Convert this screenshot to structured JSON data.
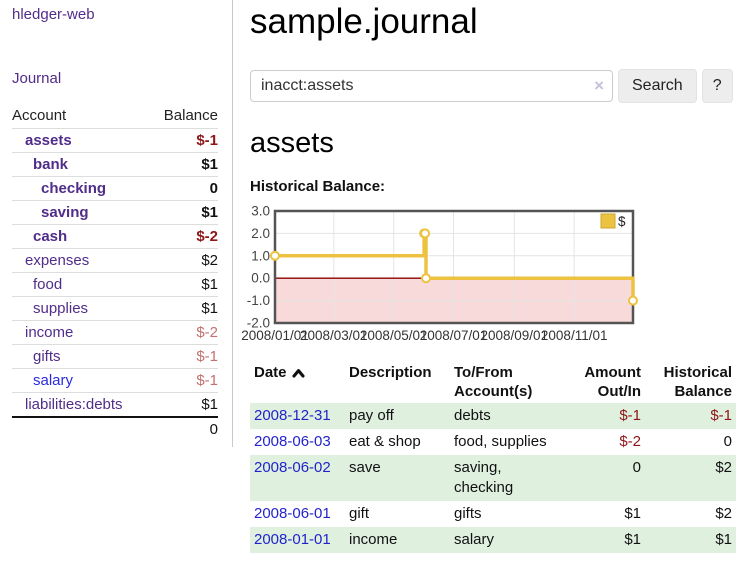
{
  "sidebar": {
    "brand": "hledger-web",
    "nav": [
      {
        "label": "Journal"
      }
    ],
    "accounts_table": {
      "headers": [
        "Account",
        "Balance"
      ],
      "rows": [
        {
          "account": "assets",
          "depth": 1,
          "bold": true,
          "balance": "$-1",
          "balance_class": "neg-strong"
        },
        {
          "account": "bank",
          "depth": 2,
          "bold": true,
          "balance": "$1",
          "balance_class": ""
        },
        {
          "account": "checking",
          "depth": 3,
          "bold": true,
          "balance": "0",
          "balance_class": ""
        },
        {
          "account": "saving",
          "depth": 3,
          "bold": true,
          "balance": "$1",
          "balance_class": ""
        },
        {
          "account": "cash",
          "depth": 2,
          "bold": true,
          "balance": "$-2",
          "balance_class": "neg-strong"
        },
        {
          "account": "expenses",
          "depth": 1,
          "bold": false,
          "balance": "$2",
          "balance_class": ""
        },
        {
          "account": "food",
          "depth": 2,
          "bold": false,
          "balance": "$1",
          "balance_class": ""
        },
        {
          "account": "supplies",
          "depth": 2,
          "bold": false,
          "balance": "$1",
          "balance_class": ""
        },
        {
          "account": "income",
          "depth": 1,
          "bold": false,
          "balance": "$-2",
          "balance_class": "neg-soft"
        },
        {
          "account": "gifts",
          "depth": 2,
          "bold": false,
          "balance": "$-1",
          "balance_class": "neg-soft"
        },
        {
          "account": "salary",
          "depth": 2,
          "bold": false,
          "balance": "$-1",
          "balance_class": "neg-soft",
          "link_style": "blue"
        },
        {
          "account": "liabilities:debts",
          "depth": 1,
          "bold": false,
          "balance": "$1",
          "balance_class": ""
        }
      ],
      "total": "0"
    }
  },
  "main": {
    "title": "sample.journal",
    "search": {
      "value": "inacct:assets",
      "clear_icon": "×",
      "button": "Search",
      "help_button": "?"
    },
    "account_heading": "assets",
    "chart_label": "Historical Balance:",
    "register_table": {
      "headers": [
        "Date",
        "Description",
        "To/From Account(s)",
        "Amount Out/In",
        "Historical Balance"
      ],
      "sort_column": "Date",
      "sort_direction": "asc",
      "rows": [
        {
          "date": "2008-12-31",
          "description": "pay off",
          "accounts": "debts",
          "amount": "$-1",
          "amount_neg": true,
          "balance": "$-1",
          "balance_neg": true
        },
        {
          "date": "2008-06-03",
          "description": "eat & shop",
          "accounts": "food, supplies",
          "amount": "$-2",
          "amount_neg": true,
          "balance": "0",
          "balance_neg": false
        },
        {
          "date": "2008-06-02",
          "description": "save",
          "accounts": "saving, checking",
          "amount": "0",
          "amount_neg": false,
          "balance": "$2",
          "balance_neg": false
        },
        {
          "date": "2008-06-01",
          "description": "gift",
          "accounts": "gifts",
          "amount": "$1",
          "amount_neg": false,
          "balance": "$2",
          "balance_neg": false
        },
        {
          "date": "2008-01-01",
          "description": "income",
          "accounts": "salary",
          "amount": "$1",
          "amount_neg": false,
          "balance": "$1",
          "balance_neg": false
        }
      ]
    }
  },
  "chart_data": {
    "type": "line",
    "step": true,
    "title": "Historical Balance:",
    "xlim": [
      "2008-01-01",
      "2008-12-31"
    ],
    "ylim": [
      -2,
      3
    ],
    "y_ticks": [
      3,
      2,
      1,
      0,
      -1,
      -2
    ],
    "x_ticks": [
      {
        "date": "2008-01-01",
        "label": "2008/01/01"
      },
      {
        "date": "2008-03-01",
        "label": "2008/03/01"
      },
      {
        "date": "2008-05-01",
        "label": "2008/05/01"
      },
      {
        "date": "2008-07-01",
        "label": "2008/07/01"
      },
      {
        "date": "2008-09-01",
        "label": "2008/09/01"
      },
      {
        "date": "2008-11-01",
        "label": "2008/11/01"
      }
    ],
    "series": [
      {
        "name": "$",
        "color": "#edc240",
        "points": [
          [
            "2008-01-01",
            1
          ],
          [
            "2008-06-01",
            2
          ],
          [
            "2008-06-02",
            2
          ],
          [
            "2008-06-03",
            0
          ],
          [
            "2008-12-31",
            -1
          ]
        ]
      }
    ],
    "legend_position": "top-right",
    "grid": true,
    "negative_region_color": "#f9dada",
    "zero_line_color": "#8b0000"
  },
  "colors": {
    "brand_purple": "#512d8a",
    "link_blue": "#2323cc",
    "link_blue_alt": "#2a2ae0",
    "negative_strong": "#8f1616",
    "negative_soft": "#c4716f",
    "row_stripe_green": "#dff0df",
    "series_gold": "#edc240"
  }
}
